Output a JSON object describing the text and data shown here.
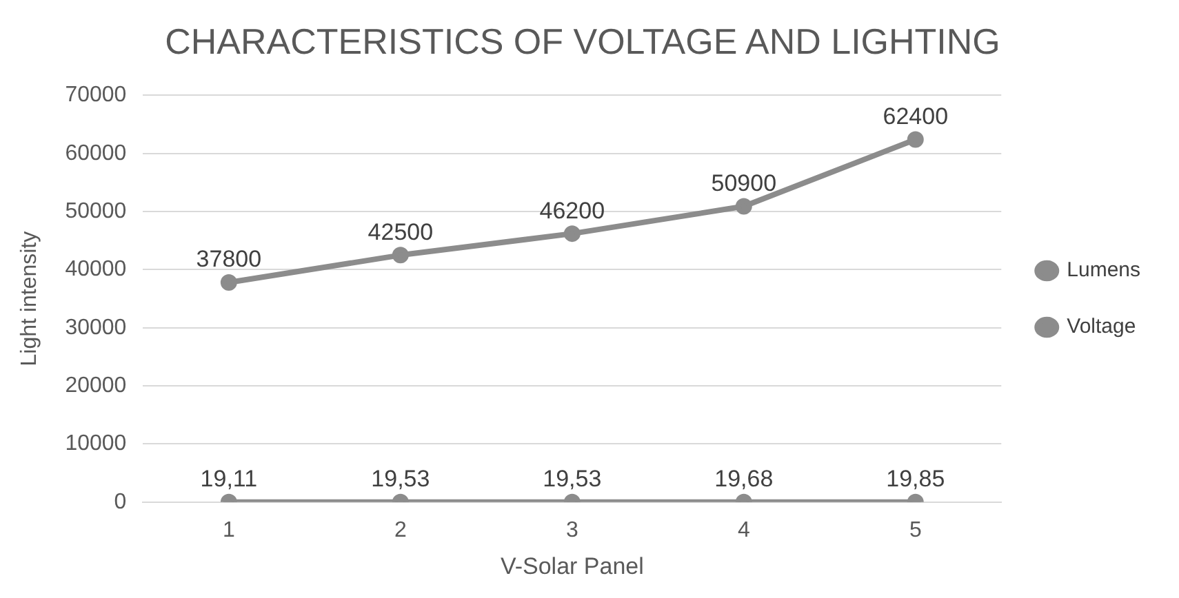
{
  "chart_data": {
    "type": "line",
    "title": "CHARACTERISTICS OF VOLTAGE AND LIGHTING",
    "xlabel": "V-Solar Panel",
    "ylabel": "Light intensity",
    "categories": [
      "1",
      "2",
      "3",
      "4",
      "5"
    ],
    "series": [
      {
        "name": "Lumens",
        "color": "#8c8c8c",
        "values": [
          37800,
          42500,
          46200,
          50900,
          62400
        ],
        "value_labels": [
          "37800",
          "42500",
          "46200",
          "50900",
          "62400"
        ]
      },
      {
        "name": "Voltage",
        "color": "#8c8c8c",
        "values": [
          19.11,
          19.53,
          19.53,
          19.68,
          19.85
        ],
        "value_labels": [
          "19,11",
          "19,53",
          "19,53",
          "19,68",
          "19,85"
        ]
      }
    ],
    "ylim": [
      0,
      70000
    ],
    "yticks": [
      0,
      10000,
      20000,
      30000,
      40000,
      50000,
      60000,
      70000
    ],
    "grid": "y",
    "legend": "right",
    "marker": "circle",
    "line_style": "solid"
  }
}
